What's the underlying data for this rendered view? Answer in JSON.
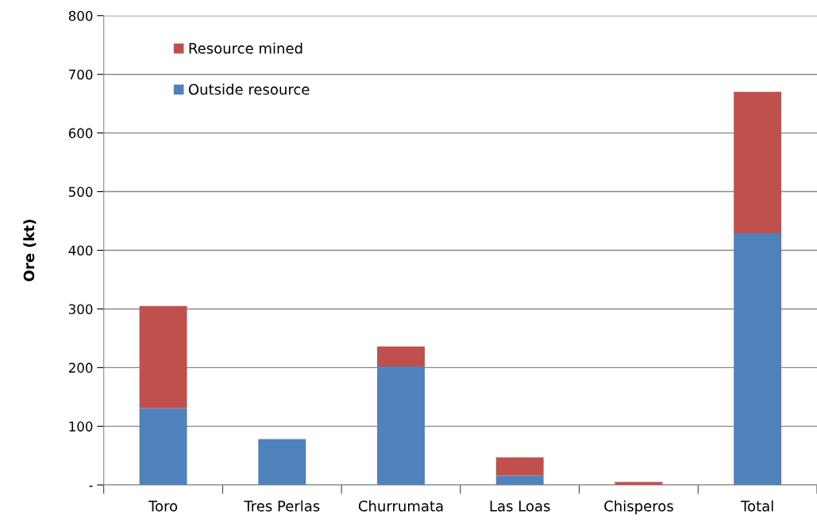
{
  "chart_data": {
    "type": "bar",
    "ylabel": "Ore (kt)",
    "stacked": true,
    "categories": [
      "Toro",
      "Tres Perlas",
      "Churrumata",
      "Las Loas",
      "Chisperos",
      "Total"
    ],
    "series": [
      {
        "name": "Outside resource",
        "color": "#4f81bd",
        "values": [
          131,
          78,
          202,
          16,
          null,
          429
        ]
      },
      {
        "name": "Resource mined",
        "color": "#c0504d",
        "values": [
          174,
          0,
          34,
          31,
          5,
          241
        ]
      }
    ],
    "ylim": [
      0,
      800
    ],
    "yticks": [
      {
        "value": 0,
        "label": "-"
      },
      100,
      200,
      300,
      400,
      500,
      600,
      700,
      800
    ],
    "grid": "y",
    "legend": "top left"
  }
}
